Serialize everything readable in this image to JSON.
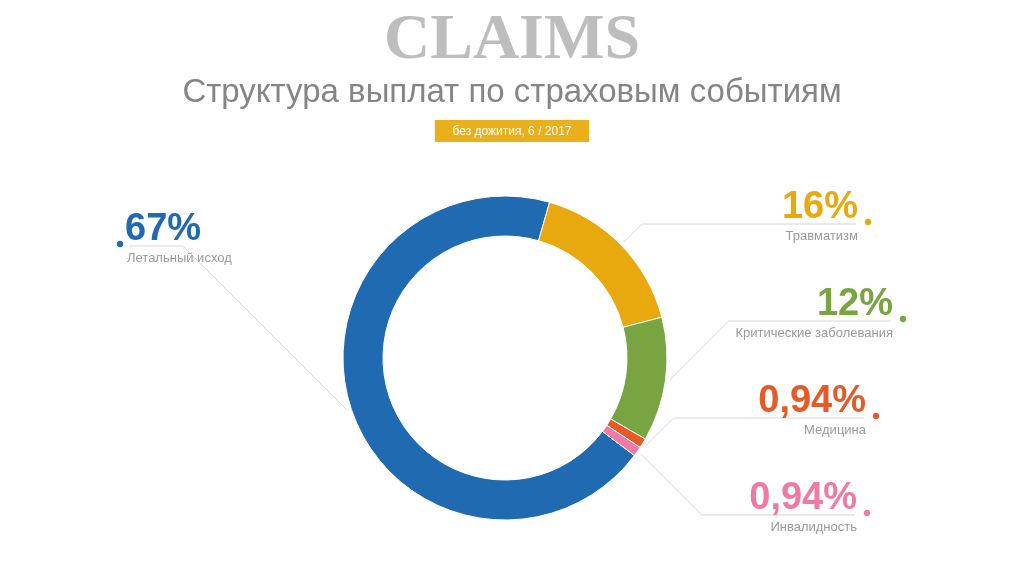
{
  "chart_data": {
    "type": "donut",
    "title": "Структура выплат по страховым событиям",
    "subtitle": "без дожития, 6 / 2017",
    "annotations": [
      "CLAIMS"
    ],
    "categories": [
      "Летальный исход",
      "Травматизм",
      "Критические заболевания",
      "Медицина",
      "Инвалидность"
    ],
    "values": [
      67,
      16,
      12,
      0.94,
      0.94
    ],
    "colors": [
      "#1f6ab0",
      "#e8a90e",
      "#78a442",
      "#e65a28",
      "#ef7aa6"
    ],
    "value_labels": [
      "67%",
      "16%",
      "12%",
      "0,94%",
      "0,94%"
    ],
    "legend": "right"
  }
}
